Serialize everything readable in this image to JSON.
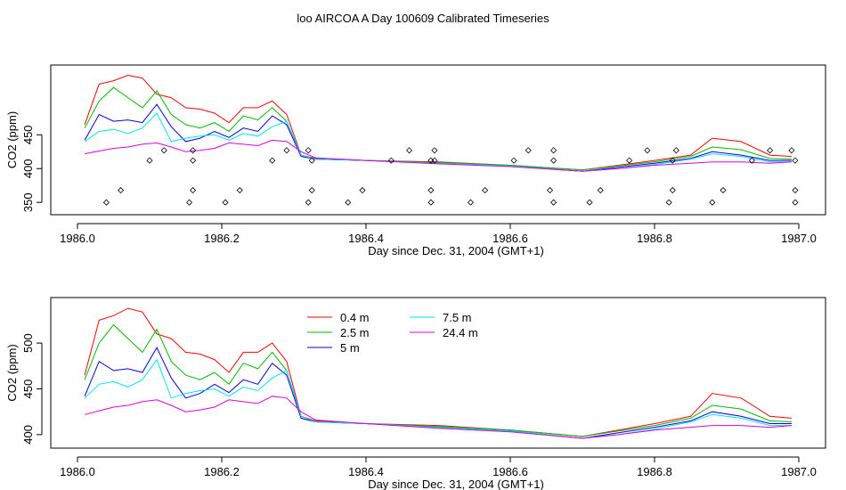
{
  "title": "loo AIRCOA A  Day 100609  Calibrated Timeseries",
  "chart_data": [
    {
      "type": "line",
      "xlabel": "Day since Dec. 31, 2004 (GMT+1)",
      "ylabel": "CO2 (ppm)",
      "xlim": [
        1986.0,
        1987.0
      ],
      "ylim": [
        345,
        540
      ],
      "xticks": [
        "1986.0",
        "1986.2",
        "1986.4",
        "1986.6",
        "1986.8",
        "1987.0"
      ],
      "yticks": [
        "350",
        "400",
        "450"
      ],
      "legend": "none",
      "series": [
        {
          "color": "#ff0000",
          "x": [
            1986.01,
            1986.03,
            1986.05,
            1986.07,
            1986.09,
            1986.11,
            1986.13,
            1986.15,
            1986.17,
            1986.19,
            1986.21,
            1986.23,
            1986.25,
            1986.27,
            1986.29,
            1986.31,
            1986.33,
            1986.4,
            1986.5,
            1986.6,
            1986.7,
            1986.75,
            1986.8,
            1986.85,
            1986.88,
            1986.92,
            1986.96,
            1986.99
          ],
          "values": [
            465,
            525,
            530,
            538,
            534,
            510,
            505,
            490,
            488,
            482,
            468,
            490,
            490,
            500,
            480,
            420,
            415,
            412,
            410,
            405,
            398,
            405,
            412,
            420,
            445,
            440,
            420,
            418
          ]
        },
        {
          "color": "#00bb00",
          "x": [
            1986.01,
            1986.03,
            1986.05,
            1986.07,
            1986.09,
            1986.11,
            1986.13,
            1986.15,
            1986.17,
            1986.19,
            1986.21,
            1986.23,
            1986.25,
            1986.27,
            1986.29,
            1986.31,
            1986.33,
            1986.4,
            1986.5,
            1986.6,
            1986.7,
            1986.75,
            1986.8,
            1986.85,
            1986.88,
            1986.92,
            1986.96,
            1986.99
          ],
          "values": [
            460,
            500,
            520,
            505,
            490,
            515,
            480,
            465,
            460,
            468,
            455,
            478,
            472,
            490,
            470,
            420,
            414,
            412,
            409,
            405,
            398,
            404,
            410,
            418,
            432,
            428,
            415,
            414
          ]
        },
        {
          "color": "#0000ee",
          "x": [
            1986.01,
            1986.03,
            1986.05,
            1986.07,
            1986.09,
            1986.11,
            1986.13,
            1986.15,
            1986.17,
            1986.19,
            1986.21,
            1986.23,
            1986.25,
            1986.27,
            1986.29,
            1986.31,
            1986.33,
            1986.4,
            1986.5,
            1986.6,
            1986.7,
            1986.75,
            1986.8,
            1986.85,
            1986.88,
            1986.92,
            1986.96,
            1986.99
          ],
          "values": [
            442,
            480,
            470,
            472,
            468,
            495,
            462,
            440,
            445,
            455,
            446,
            460,
            455,
            478,
            465,
            418,
            414,
            412,
            408,
            404,
            396,
            402,
            408,
            415,
            425,
            420,
            412,
            412
          ]
        },
        {
          "color": "#00e5ee",
          "x": [
            1986.01,
            1986.03,
            1986.05,
            1986.07,
            1986.09,
            1986.11,
            1986.13,
            1986.15,
            1986.17,
            1986.19,
            1986.21,
            1986.23,
            1986.25,
            1986.27,
            1986.29,
            1986.31,
            1986.33,
            1986.4,
            1986.5,
            1986.6,
            1986.7,
            1986.75,
            1986.8,
            1986.85,
            1986.88,
            1986.92,
            1986.96,
            1986.99
          ],
          "values": [
            440,
            455,
            458,
            452,
            460,
            482,
            440,
            445,
            448,
            450,
            442,
            452,
            448,
            462,
            470,
            420,
            414,
            412,
            408,
            404,
            396,
            400,
            406,
            414,
            422,
            418,
            410,
            410
          ]
        },
        {
          "color": "#dd00dd",
          "x": [
            1986.01,
            1986.03,
            1986.05,
            1986.07,
            1986.09,
            1986.11,
            1986.13,
            1986.15,
            1986.17,
            1986.19,
            1986.21,
            1986.23,
            1986.25,
            1986.27,
            1986.29,
            1986.31,
            1986.33,
            1986.4,
            1986.5,
            1986.6,
            1986.7,
            1986.75,
            1986.8,
            1986.85,
            1986.88,
            1986.92,
            1986.96,
            1986.99
          ],
          "values": [
            422,
            426,
            430,
            432,
            436,
            438,
            432,
            425,
            427,
            430,
            438,
            436,
            434,
            442,
            440,
            425,
            416,
            412,
            407,
            403,
            396,
            400,
            405,
            408,
            410,
            410,
            408,
            410
          ]
        }
      ],
      "scatter_points": {
        "x": [
          1986.04,
          1986.06,
          1986.1,
          1986.12,
          1986.155,
          1986.16,
          1986.16,
          1986.16,
          1986.205,
          1986.225,
          1986.27,
          1986.29,
          1986.32,
          1986.325,
          1986.325,
          1986.32,
          1986.375,
          1986.395,
          1986.435,
          1986.46,
          1986.49,
          1986.49,
          1986.49,
          1986.495,
          1986.495,
          1986.545,
          1986.565,
          1986.605,
          1986.625,
          1986.655,
          1986.66,
          1986.66,
          1986.66,
          1986.71,
          1986.725,
          1986.765,
          1986.79,
          1986.82,
          1986.825,
          1986.825,
          1986.83,
          1986.88,
          1986.895,
          1986.935,
          1986.96,
          1986.99,
          1986.995,
          1986.995,
          1986.995
        ],
        "values": [
          350,
          368,
          412,
          427,
          350,
          368,
          412,
          427,
          350,
          368,
          412,
          427,
          350,
          368,
          412,
          427,
          350,
          368,
          412,
          427,
          350,
          368,
          412,
          412,
          427,
          350,
          368,
          412,
          427,
          368,
          412,
          427,
          350,
          350,
          368,
          412,
          427,
          350,
          368,
          412,
          427,
          350,
          368,
          412,
          427,
          427,
          412,
          368,
          350
        ]
      }
    },
    {
      "type": "line",
      "xlabel": "Day since Dec. 31, 2004 (GMT+1)",
      "ylabel": "CO2 (ppm)",
      "xlim": [
        1986.0,
        1987.0
      ],
      "ylim": [
        395,
        540
      ],
      "xticks": [
        "1986.0",
        "1986.2",
        "1986.4",
        "1986.6",
        "1986.8",
        "1987.0"
      ],
      "yticks": [
        "400",
        "450",
        "500"
      ],
      "legend": "top-left",
      "series": [
        {
          "name": "0.4 m",
          "color": "#ff0000",
          "x": [
            1986.01,
            1986.03,
            1986.05,
            1986.07,
            1986.09,
            1986.11,
            1986.13,
            1986.15,
            1986.17,
            1986.19,
            1986.21,
            1986.23,
            1986.25,
            1986.27,
            1986.29,
            1986.31,
            1986.33,
            1986.4,
            1986.5,
            1986.6,
            1986.7,
            1986.75,
            1986.8,
            1986.85,
            1986.88,
            1986.92,
            1986.96,
            1986.99
          ],
          "values": [
            465,
            525,
            530,
            538,
            534,
            510,
            505,
            490,
            488,
            482,
            468,
            490,
            490,
            500,
            480,
            420,
            415,
            412,
            410,
            405,
            398,
            405,
            412,
            420,
            445,
            440,
            420,
            418
          ]
        },
        {
          "name": "2.5 m",
          "color": "#00bb00",
          "x": [
            1986.01,
            1986.03,
            1986.05,
            1986.07,
            1986.09,
            1986.11,
            1986.13,
            1986.15,
            1986.17,
            1986.19,
            1986.21,
            1986.23,
            1986.25,
            1986.27,
            1986.29,
            1986.31,
            1986.33,
            1986.4,
            1986.5,
            1986.6,
            1986.7,
            1986.75,
            1986.8,
            1986.85,
            1986.88,
            1986.92,
            1986.96,
            1986.99
          ],
          "values": [
            460,
            500,
            520,
            505,
            490,
            515,
            480,
            465,
            460,
            468,
            455,
            478,
            472,
            490,
            470,
            420,
            414,
            412,
            409,
            405,
            398,
            404,
            410,
            418,
            432,
            428,
            415,
            414
          ]
        },
        {
          "name": "5 m",
          "color": "#0000ee",
          "x": [
            1986.01,
            1986.03,
            1986.05,
            1986.07,
            1986.09,
            1986.11,
            1986.13,
            1986.15,
            1986.17,
            1986.19,
            1986.21,
            1986.23,
            1986.25,
            1986.27,
            1986.29,
            1986.31,
            1986.33,
            1986.4,
            1986.5,
            1986.6,
            1986.7,
            1986.75,
            1986.8,
            1986.85,
            1986.88,
            1986.92,
            1986.96,
            1986.99
          ],
          "values": [
            442,
            480,
            470,
            472,
            468,
            495,
            462,
            440,
            445,
            455,
            446,
            460,
            455,
            478,
            465,
            418,
            414,
            412,
            408,
            404,
            396,
            402,
            408,
            415,
            425,
            420,
            412,
            412
          ]
        },
        {
          "name": "7.5 m",
          "color": "#00e5ee",
          "x": [
            1986.01,
            1986.03,
            1986.05,
            1986.07,
            1986.09,
            1986.11,
            1986.13,
            1986.15,
            1986.17,
            1986.19,
            1986.21,
            1986.23,
            1986.25,
            1986.27,
            1986.29,
            1986.31,
            1986.33,
            1986.4,
            1986.5,
            1986.6,
            1986.7,
            1986.75,
            1986.8,
            1986.85,
            1986.88,
            1986.92,
            1986.96,
            1986.99
          ],
          "values": [
            440,
            455,
            458,
            452,
            460,
            482,
            440,
            445,
            448,
            450,
            442,
            452,
            448,
            462,
            470,
            420,
            414,
            412,
            408,
            404,
            396,
            400,
            406,
            414,
            422,
            418,
            410,
            410
          ]
        },
        {
          "name": "24.4 m",
          "color": "#dd00dd",
          "x": [
            1986.01,
            1986.03,
            1986.05,
            1986.07,
            1986.09,
            1986.11,
            1986.13,
            1986.15,
            1986.17,
            1986.19,
            1986.21,
            1986.23,
            1986.25,
            1986.27,
            1986.29,
            1986.31,
            1986.33,
            1986.4,
            1986.5,
            1986.6,
            1986.7,
            1986.75,
            1986.8,
            1986.85,
            1986.88,
            1986.92,
            1986.96,
            1986.99
          ],
          "values": [
            422,
            426,
            430,
            432,
            436,
            438,
            432,
            425,
            427,
            430,
            438,
            436,
            434,
            442,
            440,
            425,
            416,
            412,
            407,
            403,
            396,
            400,
            405,
            408,
            410,
            410,
            408,
            410
          ]
        }
      ]
    }
  ]
}
